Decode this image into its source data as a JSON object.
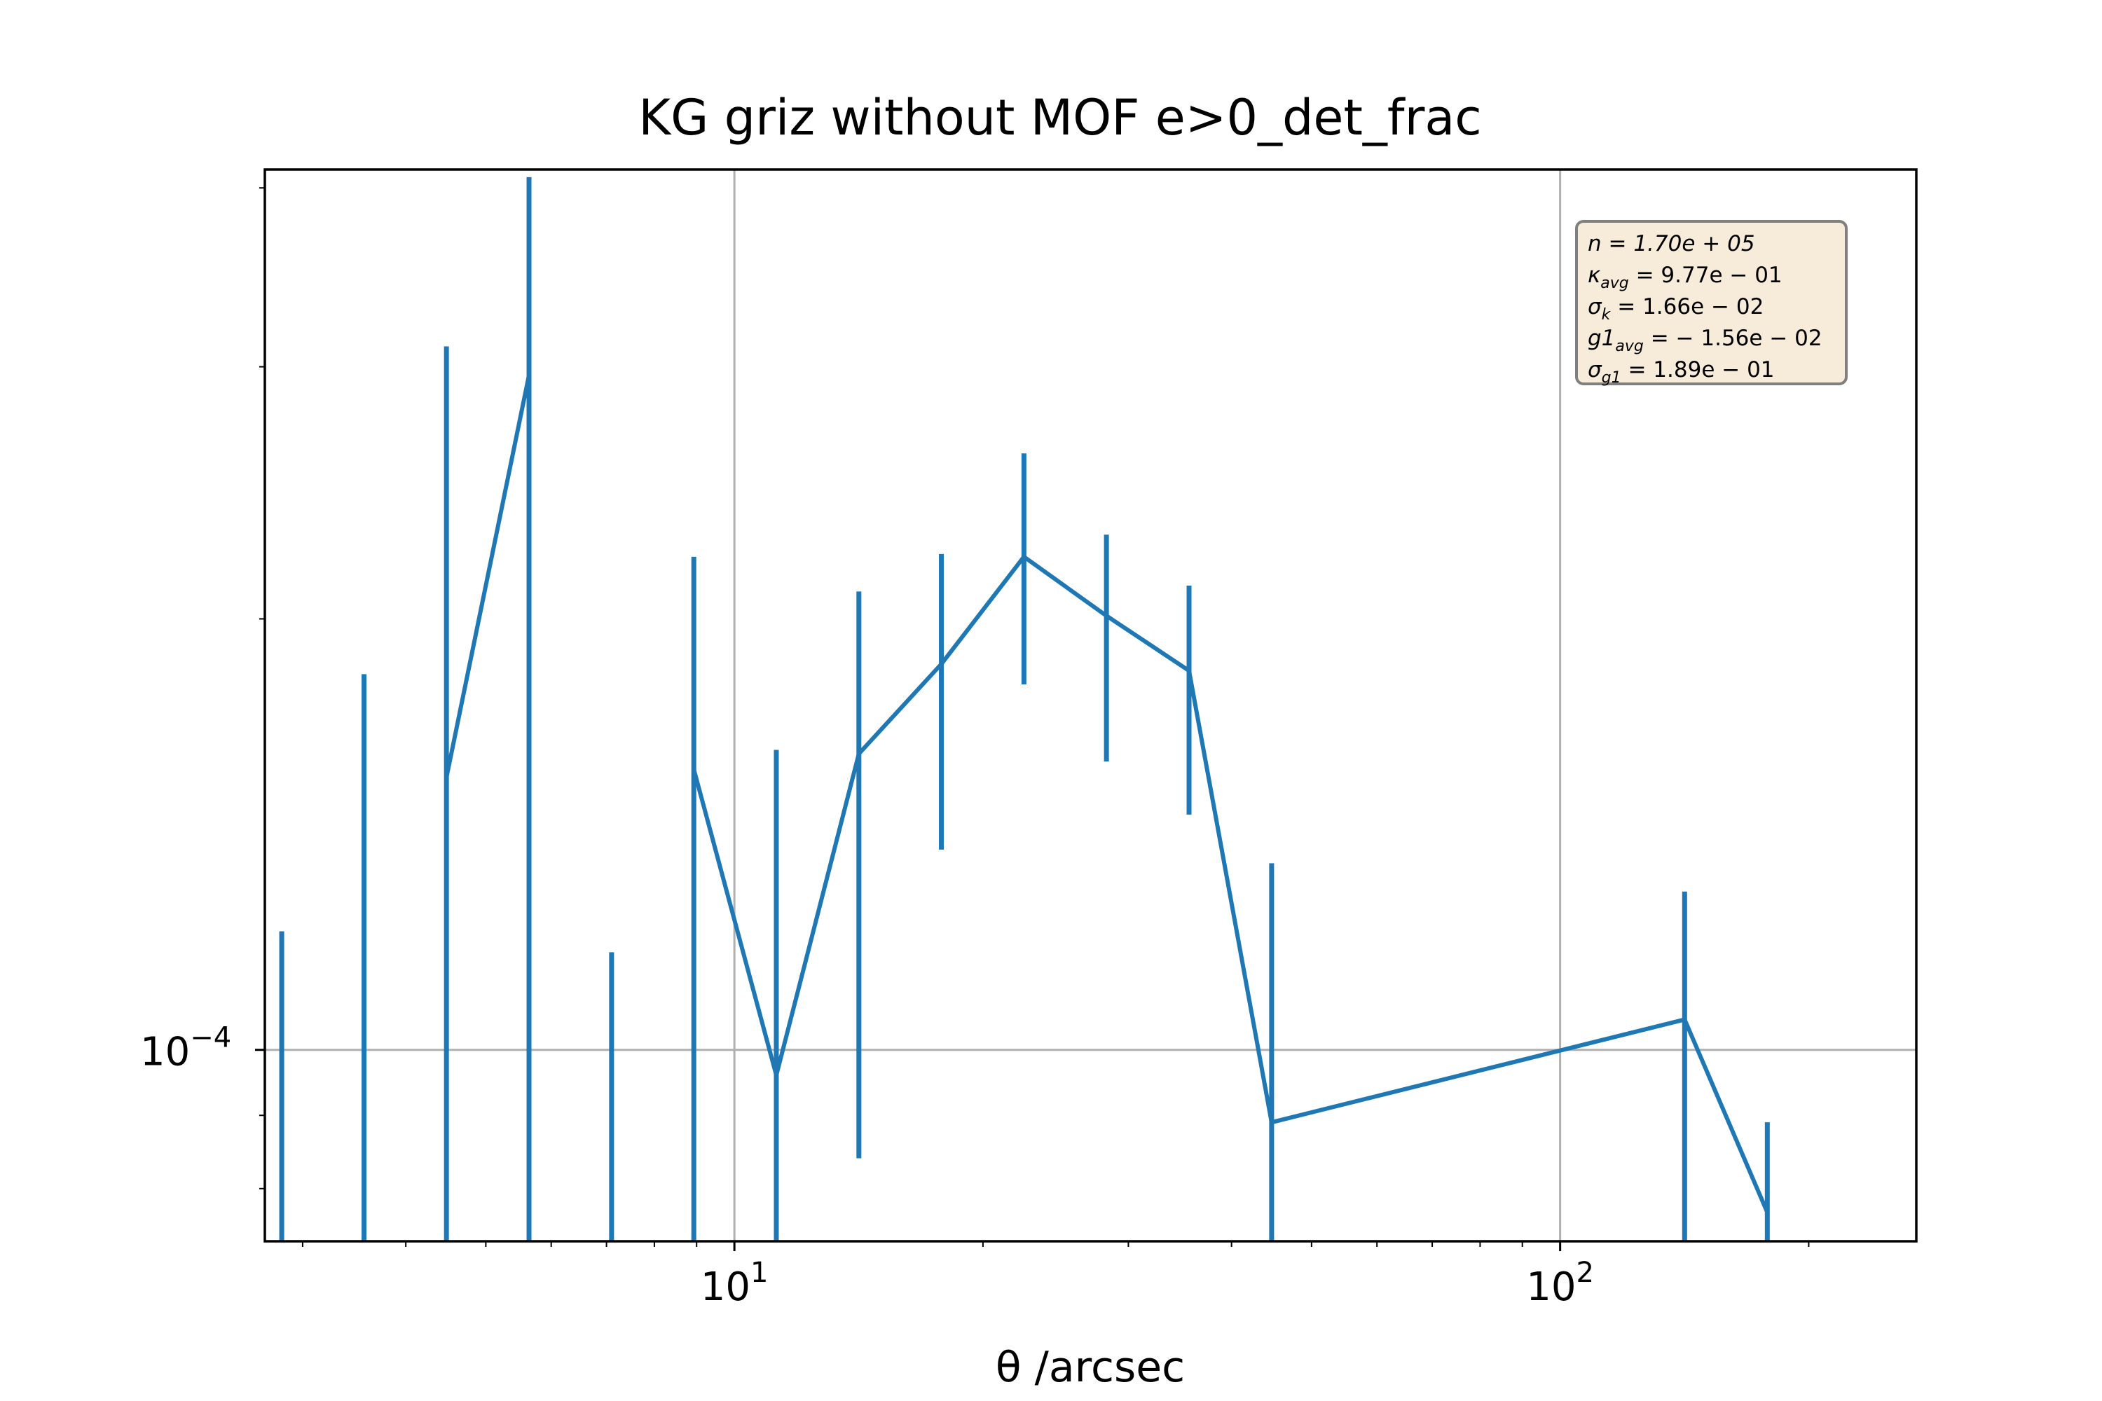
{
  "chart_data": {
    "type": "line",
    "title": "KG griz without MOF e>0_det_frac",
    "xlabel": "θ /arcsec",
    "ylabel": "",
    "xscale": "log",
    "yscale": "log",
    "xlim": [
      2.7,
      270
    ],
    "ylim": [
      7.35e-05,
      0.000412
    ],
    "grid": true,
    "x_tick_labels": [
      {
        "value": 10,
        "base": "10",
        "exp": "1"
      },
      {
        "value": 100,
        "base": "10",
        "exp": "2"
      }
    ],
    "y_tick_labels": [
      {
        "value": 0.0001,
        "base": "10",
        "exp": "−4"
      }
    ],
    "series": [
      {
        "color": "#1f77b4",
        "points": [
          {
            "x": 2.83,
            "y": null,
            "err_low": 7.35e-05,
            "err_high": 0.000121
          },
          {
            "x": 3.56,
            "y": null,
            "err_low": 7.35e-05,
            "err_high": 0.000183
          },
          {
            "x": 4.48,
            "y": 0.000155,
            "err_low": 7.35e-05,
            "err_high": 0.00031
          },
          {
            "x": 5.64,
            "y": 0.000296,
            "err_low": 7.35e-05,
            "err_high": 0.000407
          },
          {
            "x": 7.1,
            "y": null,
            "err_low": 7.35e-05,
            "err_high": 0.000117
          },
          {
            "x": 8.93,
            "y": 0.000157,
            "err_low": 7.35e-05,
            "err_high": 0.000221
          },
          {
            "x": 11.24,
            "y": 9.6e-05,
            "err_low": 7.35e-05,
            "err_high": 0.000162
          },
          {
            "x": 14.15,
            "y": 0.000161,
            "err_low": 8.4e-05,
            "err_high": 0.000209
          },
          {
            "x": 17.81,
            "y": 0.000186,
            "err_low": 0.000138,
            "err_high": 0.000222
          },
          {
            "x": 22.42,
            "y": 0.000221,
            "err_low": 0.00018,
            "err_high": 0.000261
          },
          {
            "x": 28.22,
            "y": 0.000201,
            "err_low": 0.000159,
            "err_high": 0.000229
          },
          {
            "x": 35.53,
            "y": 0.000184,
            "err_low": 0.000146,
            "err_high": 0.000211
          },
          {
            "x": 44.73,
            "y": 8.9e-05,
            "err_low": 7.35e-05,
            "err_high": 0.000135
          },
          {
            "x": 141.5,
            "y": 0.000105,
            "err_low": 7.35e-05,
            "err_high": 0.000129
          },
          {
            "x": 178.2,
            "y": 7.7e-05,
            "err_low": 7.35e-05,
            "err_high": 8.9e-05
          }
        ]
      }
    ],
    "stats_box": {
      "placement": "top-right",
      "facecolor": "#f7ecd9",
      "edgecolor": "#7f7f7f",
      "lines": [
        {
          "main": "n = 1.70e + 05",
          "sub": ""
        },
        {
          "main": "κ",
          "sub": "avg",
          "rest": " = 9.77e − 01"
        },
        {
          "main": "σ",
          "sub": "k",
          "rest": " = 1.66e − 02"
        },
        {
          "main": "g1",
          "sub": "avg",
          "rest": " = − 1.56e − 02"
        },
        {
          "main": "σ",
          "sub": "g1",
          "rest": " = 1.89e − 01"
        }
      ]
    }
  }
}
